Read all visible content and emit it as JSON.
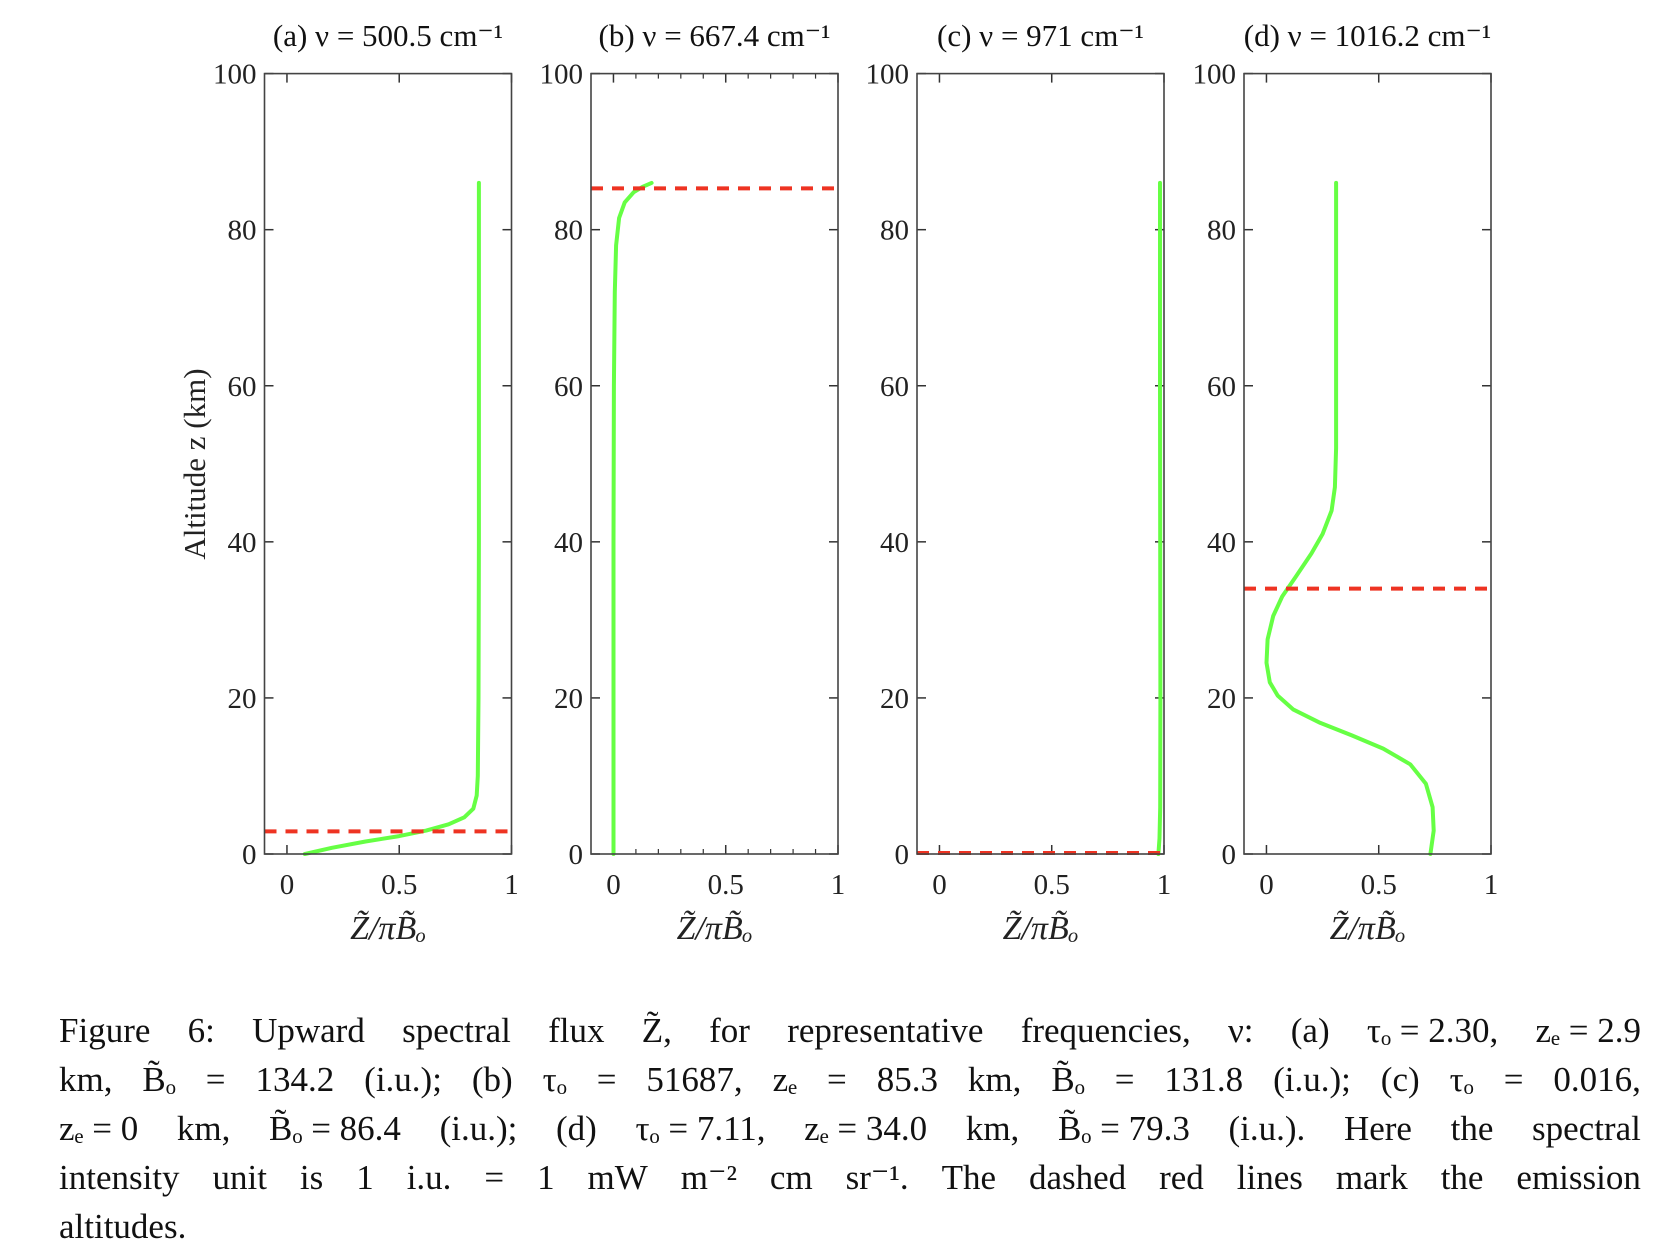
{
  "chart_data": [
    {
      "type": "line",
      "title": "(a) ν = 500.5 cm⁻¹",
      "xlabel": "Z̃/πB̃ₒ",
      "ylabel": "Altitude z (km)",
      "xlim": [
        -0.1,
        1
      ],
      "ylim": [
        0,
        100
      ],
      "xticks": [
        "0",
        "0.5",
        "1"
      ],
      "yticks": [
        "0",
        "20",
        "40",
        "60",
        "80",
        "100"
      ],
      "emission_altitude": 2.9,
      "series": [
        {
          "name": "Z/piB",
          "color": "#66ff44",
          "points": [
            [
              0.08,
              0
            ],
            [
              0.2,
              0.8
            ],
            [
              0.35,
              1.6
            ],
            [
              0.5,
              2.3
            ],
            [
              0.62,
              3.0
            ],
            [
              0.72,
              3.8
            ],
            [
              0.79,
              4.7
            ],
            [
              0.83,
              5.8
            ],
            [
              0.845,
              7.5
            ],
            [
              0.85,
              10
            ],
            [
              0.853,
              20
            ],
            [
              0.855,
              40
            ],
            [
              0.855,
              86
            ]
          ]
        }
      ],
      "dash_color": "#ee3322"
    },
    {
      "type": "line",
      "title": "(b) ν = 667.4 cm⁻¹",
      "xlabel": "Z̃/πB̃ₒ",
      "xlim": [
        -0.1,
        1
      ],
      "ylim": [
        0,
        100
      ],
      "xticks": [
        "0",
        "0.5",
        "1"
      ],
      "yticks": [
        "0",
        "20",
        "40",
        "60",
        "80",
        "100"
      ],
      "minor_x_ticks": true,
      "emission_altitude": 85.3,
      "series": [
        {
          "name": "Z/piB",
          "color": "#66ff44",
          "points": [
            [
              0.0,
              0
            ],
            [
              0.0,
              40
            ],
            [
              0.002,
              60
            ],
            [
              0.006,
              72
            ],
            [
              0.012,
              78
            ],
            [
              0.025,
              81.5
            ],
            [
              0.05,
              83.5
            ],
            [
              0.09,
              84.8
            ],
            [
              0.13,
              85.5
            ],
            [
              0.17,
              86
            ]
          ]
        }
      ],
      "dash_color": "#ee3322"
    },
    {
      "type": "line",
      "title": "(c) ν = 971 cm⁻¹",
      "xlabel": "Z̃/πB̃ₒ",
      "xlim": [
        -0.1,
        1
      ],
      "ylim": [
        0,
        100
      ],
      "xticks": [
        "0",
        "0.5",
        "1"
      ],
      "yticks": [
        "0",
        "20",
        "40",
        "60",
        "80",
        "100"
      ],
      "emission_altitude": 0,
      "series": [
        {
          "name": "Z/piB",
          "color": "#66ff44",
          "points": [
            [
              0.975,
              0
            ],
            [
              0.98,
              2
            ],
            [
              0.983,
              6
            ],
            [
              0.984,
              20
            ],
            [
              0.983,
              40
            ],
            [
              0.982,
              60
            ],
            [
              0.982,
              86
            ]
          ]
        }
      ],
      "dash_color": "#ee3322"
    },
    {
      "type": "line",
      "title": "(d) ν = 1016.2 cm⁻¹",
      "xlabel": "Z̃/πB̃ₒ",
      "xlim": [
        -0.1,
        1
      ],
      "ylim": [
        0,
        100
      ],
      "xticks": [
        "0",
        "0.5",
        "1"
      ],
      "yticks": [
        "0",
        "20",
        "40",
        "60",
        "80",
        "100"
      ],
      "emission_altitude": 34.0,
      "series": [
        {
          "name": "Z/piB",
          "color": "#66ff44",
          "points": [
            [
              0.73,
              0
            ],
            [
              0.745,
              3
            ],
            [
              0.74,
              6
            ],
            [
              0.71,
              9
            ],
            [
              0.64,
              11.5
            ],
            [
              0.52,
              13.5
            ],
            [
              0.38,
              15.2
            ],
            [
              0.24,
              16.8
            ],
            [
              0.12,
              18.5
            ],
            [
              0.05,
              20.3
            ],
            [
              0.015,
              22
            ],
            [
              0.0,
              24.5
            ],
            [
              0.005,
              27.5
            ],
            [
              0.03,
              30.5
            ],
            [
              0.07,
              33
            ],
            [
              0.13,
              35.5
            ],
            [
              0.2,
              38.5
            ],
            [
              0.25,
              41
            ],
            [
              0.29,
              44
            ],
            [
              0.305,
              47
            ],
            [
              0.31,
              52
            ],
            [
              0.31,
              86
            ]
          ]
        }
      ],
      "dash_color": "#ee3322"
    }
  ],
  "caption": {
    "lines": [
      [
        "Figure",
        "6:",
        "Upward",
        "spectral",
        "flux",
        "Z̃,",
        "for",
        "representative",
        "frequencies,",
        "ν:",
        "(a)",
        "τₒ = 2.30,",
        "zₑ = 2.9"
      ],
      [
        "km,",
        "B̃ₒ",
        "=",
        "134.2",
        "(i.u.);",
        "(b)",
        "τₒ",
        "=",
        "51687,",
        "zₑ",
        "=",
        "85.3",
        "km,",
        "B̃ₒ",
        "=",
        "131.8",
        "(i.u.);",
        "(c)",
        "τₒ",
        "=",
        "0.016,"
      ],
      [
        "zₑ = 0",
        "km,",
        "B̃ₒ = 86.4",
        "(i.u.);",
        "(d)",
        "τₒ = 7.11,",
        "zₑ = 34.0",
        "km,",
        "B̃ₒ = 79.3",
        "(i.u.).",
        "Here",
        "the",
        "spectral"
      ],
      [
        "intensity",
        "unit",
        "is",
        "1",
        "i.u.",
        "=",
        "1",
        "mW",
        "m⁻²",
        "cm",
        "sr⁻¹.",
        "The",
        "dashed",
        "red",
        "lines",
        "mark",
        "the",
        "emission"
      ],
      [
        "altitudes."
      ]
    ]
  }
}
